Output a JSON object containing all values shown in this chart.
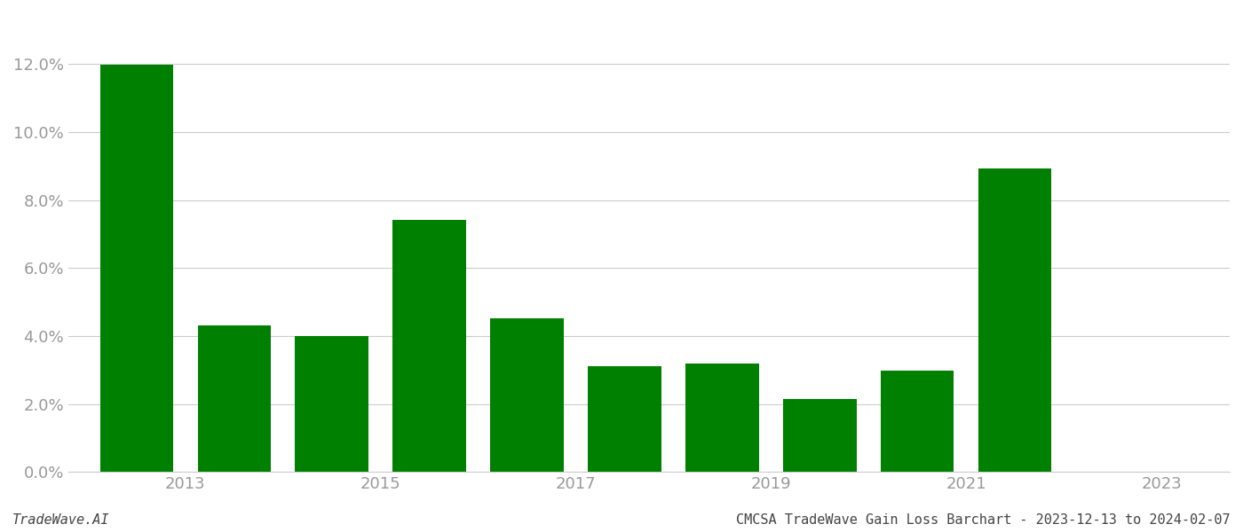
{
  "years": [
    2013,
    2014,
    2015,
    2016,
    2017,
    2018,
    2019,
    2020,
    2021,
    2022
  ],
  "values": [
    0.1199,
    0.0432,
    0.0401,
    0.0742,
    0.0452,
    0.031,
    0.032,
    0.0215,
    0.0298,
    0.0893
  ],
  "bar_color": "#008000",
  "footer_left": "TradeWave.AI",
  "footer_right": "CMCSA TradeWave Gain Loss Barchart - 2023-12-13 to 2024-02-07",
  "ylim": [
    0,
    0.135
  ],
  "yticks": [
    0.0,
    0.02,
    0.04,
    0.06,
    0.08,
    0.1,
    0.12
  ],
  "xtick_positions": [
    2013.5,
    2015.5,
    2017.5,
    2019.5,
    2021.5,
    2023.5
  ],
  "xtick_labels": [
    "2013",
    "2015",
    "2017",
    "2019",
    "2021",
    "2023"
  ],
  "background_color": "#ffffff",
  "grid_color": "#cccccc",
  "bar_width": 0.75,
  "figsize": [
    14.0,
    6.0
  ],
  "dpi": 100,
  "tick_label_color": "#999999",
  "spine_color": "#cccccc",
  "xlim": [
    2012.3,
    2024.2
  ]
}
